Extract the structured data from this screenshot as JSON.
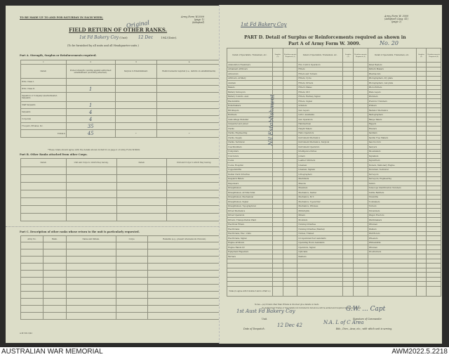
{
  "left": {
    "top_note": "TO BE MADE UP TO AND FOR SATURDAY IN EACH WEEK.",
    "form_ref": "Army Form W.3009",
    "form_page": "(page 1)",
    "form_adopted": "(Adopted)",
    "title": "FIELD RETURN OF OTHER RANKS.",
    "hand_original": "Original",
    "hand_unit": "1st Fd Bakery Coy",
    "unit_label": "(Unit)",
    "hand_date": "12 Dec",
    "year": "194",
    "hand_year": "2",
    "date_label": "(Date).",
    "furnished": "(To be furnished by all units and all Headquarter units.)",
    "partA": {
      "title": "Part A.  Strength, Surplus or Reinforcements required.",
      "col_numbers": [
        "1",
        "2",
        "3",
        "4"
      ],
      "headers": [
        "Detail.",
        "Posted strength counting against authorised establishment (excluding attached).",
        "Surplus to Establishment.",
        "Reinforcements required (i.e., deficits on establishments)."
      ],
      "rows": [
        {
          "detail": "W.Os. Class I.",
          "posted": ""
        },
        {
          "detail": "W.Os. Class II.",
          "posted": "1"
        },
        {
          "detail": "Squadron or Company Quartermaster-Serjeants",
          "posted": ""
        },
        {
          "detail": "Staff Serjeants",
          "posted": "1"
        },
        {
          "detail": "Serjeants",
          "posted": "4"
        },
        {
          "detail": "Corporals",
          "posted": "4"
        },
        {
          "detail": "Troopers, Privates, &c.",
          "posted": "35"
        }
      ],
      "totals_label": "TOTALS",
      "totals_value": "45",
      "totals_mark": "*",
      "footnote": "*These totals should agree with the details shown in Part D on page 2 of Army Form W.3009."
    },
    "partB": {
      "title": "Part B.  Other Ranks attached from other Corps.",
      "headers": [
        "Detail.",
        "Unit and Corps to which they belong.",
        "Detail.",
        "Unit and Corps to which they belong."
      ]
    },
    "partC": {
      "title": "Part C.  Description of other ranks whose return to the unit is particularly requested.",
      "headers": [
        "Army No.",
        "Rank.",
        "Name and Initials.",
        "Corps.",
        "Remarks (e.g., present whereabouts if known)."
      ]
    },
    "print_ref": "A.W. 501-5/41"
  },
  "right": {
    "hand_unit": "1st Fd Bakery Coy",
    "form_ref": "Army Form W. 3009",
    "form_adopted": "(Adopted) (Aug. 41)",
    "form_page": "(page 2)",
    "title1": "PART D.  Detail of Surplus or Reinforcements required as shown in",
    "title2": "Part A of Army Form W. 3009.",
    "hand_number": "No. 20",
    "col_header": "Detail of Specialists, Tradesmen, etc.",
    "col_surplus": "Surplus (3)",
    "col_reinf": "Reinforcements Required (4)",
    "col1": [
      "Ammunition Examiners",
      "Armament Artificers",
      "Armourers",
      "Artificers, Artillery",
      "Axemen",
      "Bakers",
      "Battery Surveyors",
      "Battery Comdrs. Asst.",
      "Blacksmiths",
      "Boilermakers",
      "Bricklayers",
      "Butchers",
      "Camouflage Modeller",
      "Carpenter and Joiner",
      "Clerks",
      "Clerks, Engineering",
      "Clerks, Supply",
      "Clerks, Technical",
      "Coachbuilders",
      "Computers",
      "Concretors",
      "Cooks",
      "Cooks, Hospital",
      "Coppersmiths",
      "Dental Clerk Orderlies",
      "Despatch Riders",
      "Dispensers",
      "Draughtsmen",
      "Draughtsmen, Architectural",
      "Draughtsmen, Mechanical",
      "Draughtsmen, Signal",
      "Draughtsmen, Topographical",
      "Driver Mechanics",
      "Driver Operators",
      "Drivers, Transportation Plant",
      "Electrical Fitters",
      "Electricians",
      "Electricians, Elec. Units",
      "Electricians, Signal",
      "Engine Artificers",
      "Engine Hands I/C",
      "Equipment Repairers",
      "Farriers"
    ],
    "col2": [
      "Fire Control Operators",
      "Fitters",
      "Fitters and Turners",
      "Fitters, Cycle",
      "Fitters, Drivers",
      "Fitter's Mates",
      "Fitters, M.T.",
      "Fitters, Railway Signal",
      "Fitters, Signal",
      "Grinders",
      "Gun Layers",
      "G.P.O. Assistants",
      "Gun Operators",
      "Hammermen",
      "Height Takers",
      "Helio Operators",
      "Instrument Mechanics",
      "Instrument Mechanics, Surgical",
      "Instrument Operators",
      "Intelligence Duties",
      "Joiners",
      "Leather Stitchers",
      "Linemen",
      "Linemen, Signals",
      "Lithographers",
      "Machinists",
      "Masons",
      "Messmen",
      "Mechanics, Dental",
      "Mechanics, M.T.",
      "Mechanics, Typewriter",
      "Mechanics, Wireless",
      "Millwrights",
      "Miners",
      "Moulders",
      "Nursing Orderlies",
      "Nursing Orderlies (Mental)",
      "Nurses, Trained",
      "Occupational Post Assistants",
      "Operating Room Assistants",
      "Operators, Signal",
      "Opticians",
      "Painters"
    ],
    "col3": [
      "Panel Beaters",
      "Pattern Makers",
      "Pharmacists",
      "Photographers, dry plate",
      "Photographers, wet plate",
      "Photo-Writers",
      "Plate Layers",
      "Plumbers",
      "Predictor Numbers",
      "Printers",
      "Radiator Mechanics",
      "Radiographers",
      "Range Takers",
      "Riggers",
      "Riveters",
      "Saddlers",
      "Saddle Tree Makers",
      "Saw Doctors",
      "Sawyers",
      "Shoemakers",
      "Signallers",
      "Signwriters",
      "Stokers, Stationary Engine",
      "Storemen, Technical",
      "Surveyors",
      "Surveyors, Engineering",
      "Tailors",
      "Telescope Identification Numbers",
      "Textile Refitters",
      "Tinsmiths",
      "Toolmakers",
      "Turners",
      "Vulcanizers",
      "Wagon Erectors",
      "Watchmakers",
      "Wiremen",
      "Welders",
      "Well Borers",
      "Wheelers",
      "Whitesmiths",
      "Wiremen",
      "Woodturners"
    ],
    "totals_label": "Totals (to agree with Columns 3 and 4 of Part A.)",
    "hand_vertical": "Nil Establishment",
    "note1": "Notes.—(a) If rank other than Private is involved give details on back.",
    "note2": "(b) Authorised Trades or Specialists not included in list above will be added and required numbers entered.",
    "hand_unit_bottom": "1st Aust Fd Bakery Coy",
    "unit_label": "Unit.",
    "hand_signature": "G.W. ... Capt",
    "signature_label": "Signature of Commander.",
    "hand_area": "N.A. L of C Area",
    "area_label": "Bde., Divn., Area, etc., with which unit is serving.",
    "despatch_label": "Date of Despatch.",
    "hand_despatch": "12 Dec 42"
  },
  "caption": {
    "left": "AUSTRALIAN WAR MEMORIAL",
    "right": "AWM2022.5.2218"
  }
}
